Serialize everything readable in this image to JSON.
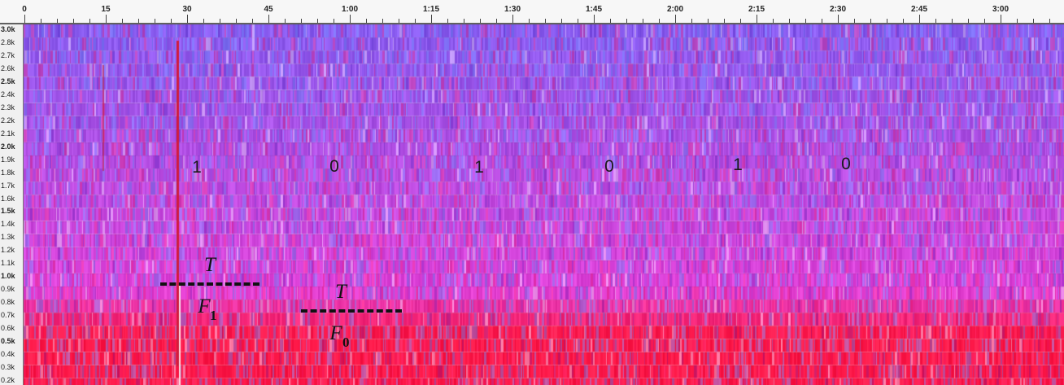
{
  "time_ruler": {
    "labels": [
      "0",
      "15",
      "30",
      "45",
      "1:00",
      "1:15",
      "1:30",
      "1:45",
      "2:00",
      "2:15",
      "2:30",
      "2:45",
      "3:00"
    ]
  },
  "freq_axis": {
    "labels": [
      "3.0k",
      "2.8k",
      "2.7k",
      "2.6k",
      "2.5k",
      "2.4k",
      "2.3k",
      "2.2k",
      "2.1k",
      "2.0k",
      "1.9k",
      "1.8k",
      "1.7k",
      "1.6k",
      "1.5k",
      "1.4k",
      "1.3k",
      "1.2k",
      "1.1k",
      "1.0k",
      "0.9k",
      "0.8k",
      "0.7k",
      "0.6k",
      "0.5k",
      "0.4k",
      "0.3k",
      "0.2k"
    ],
    "bold_labels": [
      "3.0k",
      "2.5k",
      "2.0k",
      "1.5k",
      "1.0k",
      "0.5k"
    ]
  },
  "annotations": {
    "bits": [
      "1",
      "0",
      "1",
      "0",
      "1",
      "0"
    ],
    "threshold_1": {
      "symbol": "T",
      "freq_symbol": "F",
      "freq_subscript": "1"
    },
    "threshold_0": {
      "symbol": "T",
      "freq_symbol": "F",
      "freq_subscript": "0"
    }
  },
  "colors": {
    "high_band": "#8a5cf0",
    "mid_band": "#e040d8",
    "low_band": "#ff1a4a",
    "marker": "#d01c3c"
  }
}
